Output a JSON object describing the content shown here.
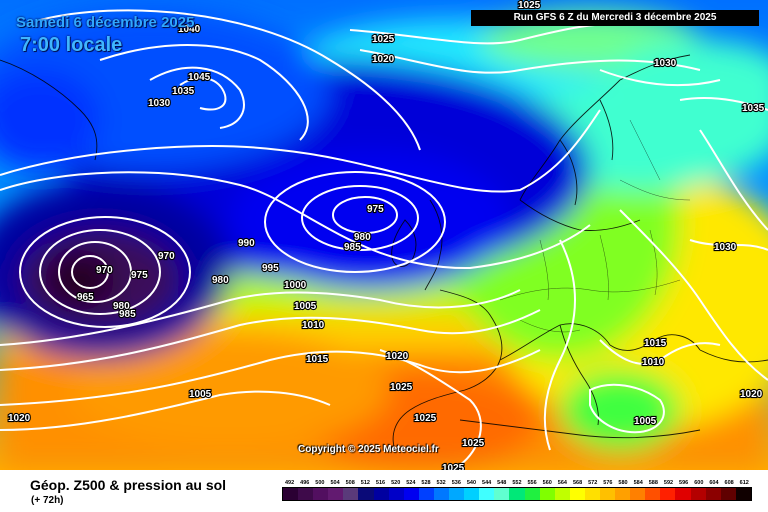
{
  "header": {
    "date_line": "Samedi 6 décembre 2025",
    "time_line": "7:00 locale",
    "run_info": "Run GFS 6 Z du Mercredi 3 décembre 2025"
  },
  "copyright": "Copyright © 2025 Meteociel.fr",
  "footer": {
    "title": "Géop. Z500 & pression au sol",
    "subtitle": "(+ 72h)"
  },
  "legend": {
    "values": [
      "492",
      "496",
      "500",
      "504",
      "508",
      "512",
      "516",
      "520",
      "524",
      "528",
      "532",
      "536",
      "540",
      "544",
      "548",
      "552",
      "556",
      "560",
      "564",
      "568",
      "572",
      "576",
      "580",
      "584",
      "588",
      "592",
      "596",
      "600",
      "604",
      "608",
      "612"
    ],
    "colors": [
      "#2b0033",
      "#3e0a4a",
      "#520f60",
      "#621a70",
      "#5a3a7a",
      "#0a0a78",
      "#0000a0",
      "#0000c8",
      "#0000f0",
      "#0040ff",
      "#0078ff",
      "#00a8ff",
      "#00d0ff",
      "#40ffff",
      "#60ffd0",
      "#00e878",
      "#20f040",
      "#80ff00",
      "#c0ff00",
      "#ffff00",
      "#ffe000",
      "#ffc000",
      "#ffa000",
      "#ff8000",
      "#ff5000",
      "#ff2000",
      "#e00000",
      "#b40000",
      "#8c0000",
      "#600000",
      "#100000"
    ]
  },
  "isobar_labels": [
    {
      "t": "1040"
    },
    {
      "t": "1045"
    },
    {
      "t": "1035"
    },
    {
      "t": "1030"
    },
    {
      "t": "1025"
    },
    {
      "t": "1025"
    },
    {
      "t": "1020"
    },
    {
      "t": "1030"
    },
    {
      "t": "1035"
    },
    {
      "t": "975"
    },
    {
      "t": "980"
    },
    {
      "t": "985"
    },
    {
      "t": "990"
    },
    {
      "t": "995"
    },
    {
      "t": "1000"
    },
    {
      "t": "1005"
    },
    {
      "t": "1010"
    },
    {
      "t": "1015"
    },
    {
      "t": "970"
    },
    {
      "t": "970"
    },
    {
      "t": "975"
    },
    {
      "t": "965"
    },
    {
      "t": "980"
    },
    {
      "t": "985"
    },
    {
      "t": "980"
    },
    {
      "t": "1005"
    },
    {
      "t": "1020"
    },
    {
      "t": "1020"
    },
    {
      "t": "1025"
    },
    {
      "t": "1025"
    },
    {
      "t": "1025"
    },
    {
      "t": "1025"
    },
    {
      "t": "1030"
    },
    {
      "t": "1015"
    },
    {
      "t": "1010"
    },
    {
      "t": "1005"
    },
    {
      "t": "1020"
    }
  ]
}
